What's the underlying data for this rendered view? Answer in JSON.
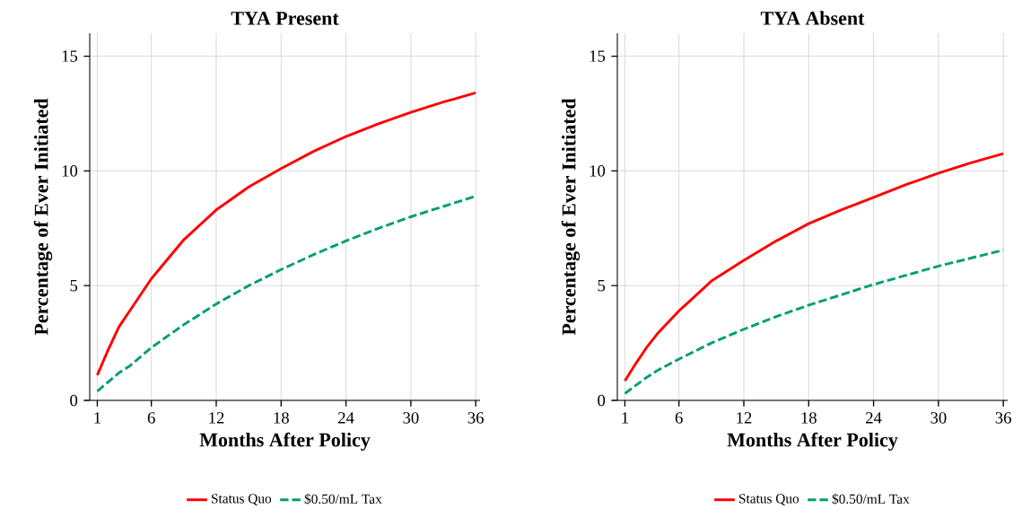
{
  "chart_data": [
    {
      "type": "line",
      "title": "TYA Present",
      "xlabel": "Months After Policy",
      "ylabel": "Percentage of Ever Initiated",
      "x": [
        1,
        2,
        3,
        4,
        6,
        9,
        12,
        15,
        18,
        21,
        24,
        27,
        30,
        33,
        36
      ],
      "xlim": [
        0.3,
        36.4
      ],
      "xticks": [
        1,
        6,
        12,
        18,
        24,
        30,
        36
      ],
      "ylim": [
        0,
        16
      ],
      "yticks": [
        0,
        5,
        10,
        15
      ],
      "grid": true,
      "legend": "bottom",
      "series": [
        {
          "name": "Status Quo",
          "color": "#ff0000",
          "line_style": "solid",
          "values": [
            1.1,
            2.2,
            3.2,
            3.9,
            5.3,
            7.0,
            8.3,
            9.3,
            10.1,
            10.85,
            11.5,
            12.05,
            12.55,
            13.0,
            13.4
          ]
        },
        {
          "name": "$0.50/mL Tax",
          "color": "#009e73",
          "line_style": "dashed",
          "values": [
            0.4,
            0.8,
            1.2,
            1.5,
            2.3,
            3.3,
            4.2,
            5.0,
            5.7,
            6.35,
            6.95,
            7.5,
            8.0,
            8.45,
            8.9
          ]
        }
      ]
    },
    {
      "type": "line",
      "title": "TYA Absent",
      "xlabel": "Months After Policy",
      "ylabel": "Percentage of Ever Initiated",
      "x": [
        1,
        2,
        3,
        4,
        6,
        9,
        12,
        15,
        18,
        21,
        24,
        27,
        30,
        33,
        36
      ],
      "xlim": [
        0.3,
        36.4
      ],
      "xticks": [
        1,
        6,
        12,
        18,
        24,
        30,
        36
      ],
      "ylim": [
        0,
        16
      ],
      "yticks": [
        0,
        5,
        10,
        15
      ],
      "grid": true,
      "legend": "bottom",
      "series": [
        {
          "name": "Status Quo",
          "color": "#ff0000",
          "line_style": "solid",
          "values": [
            0.85,
            1.6,
            2.3,
            2.9,
            3.9,
            5.2,
            6.1,
            6.95,
            7.7,
            8.3,
            8.85,
            9.4,
            9.9,
            10.35,
            10.75
          ]
        },
        {
          "name": "$0.50/mL Tax",
          "color": "#009e73",
          "line_style": "dashed",
          "values": [
            0.3,
            0.65,
            1.0,
            1.3,
            1.8,
            2.5,
            3.1,
            3.65,
            4.15,
            4.6,
            5.05,
            5.45,
            5.85,
            6.2,
            6.55
          ]
        }
      ]
    }
  ]
}
